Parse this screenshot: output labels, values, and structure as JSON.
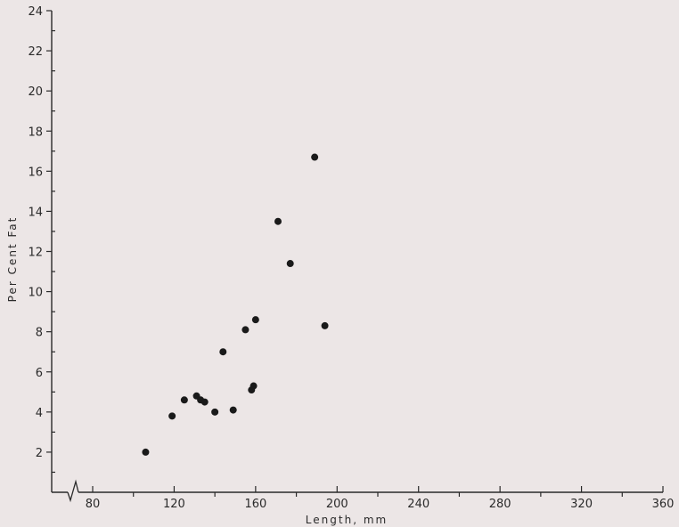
{
  "chart_data": {
    "type": "scatter",
    "title": "",
    "xlabel": "Length, mm",
    "ylabel": "Per Cent Fat",
    "xlim": [
      60,
      360
    ],
    "ylim": [
      0,
      24
    ],
    "x_ticks": [
      "80",
      "120",
      "160",
      "200",
      "240",
      "280",
      "320",
      "360"
    ],
    "y_ticks": [
      "2",
      "4",
      "6",
      "8",
      "10",
      "12",
      "14",
      "16",
      "18",
      "20",
      "22",
      "24"
    ],
    "x_axis_break": true,
    "grid": false,
    "marker_color": "#1a1a1a",
    "points": [
      {
        "x": 106,
        "y": 2.0
      },
      {
        "x": 119,
        "y": 3.8
      },
      {
        "x": 125,
        "y": 4.6
      },
      {
        "x": 131,
        "y": 4.8
      },
      {
        "x": 133,
        "y": 4.6
      },
      {
        "x": 135,
        "y": 4.5
      },
      {
        "x": 140,
        "y": 4.0
      },
      {
        "x": 144,
        "y": 7.0
      },
      {
        "x": 149,
        "y": 4.1
      },
      {
        "x": 155,
        "y": 8.1
      },
      {
        "x": 158,
        "y": 5.1
      },
      {
        "x": 159,
        "y": 5.3
      },
      {
        "x": 160,
        "y": 8.6
      },
      {
        "x": 171,
        "y": 13.5
      },
      {
        "x": 177,
        "y": 11.4
      },
      {
        "x": 189,
        "y": 16.7
      },
      {
        "x": 194,
        "y": 8.3
      }
    ]
  }
}
